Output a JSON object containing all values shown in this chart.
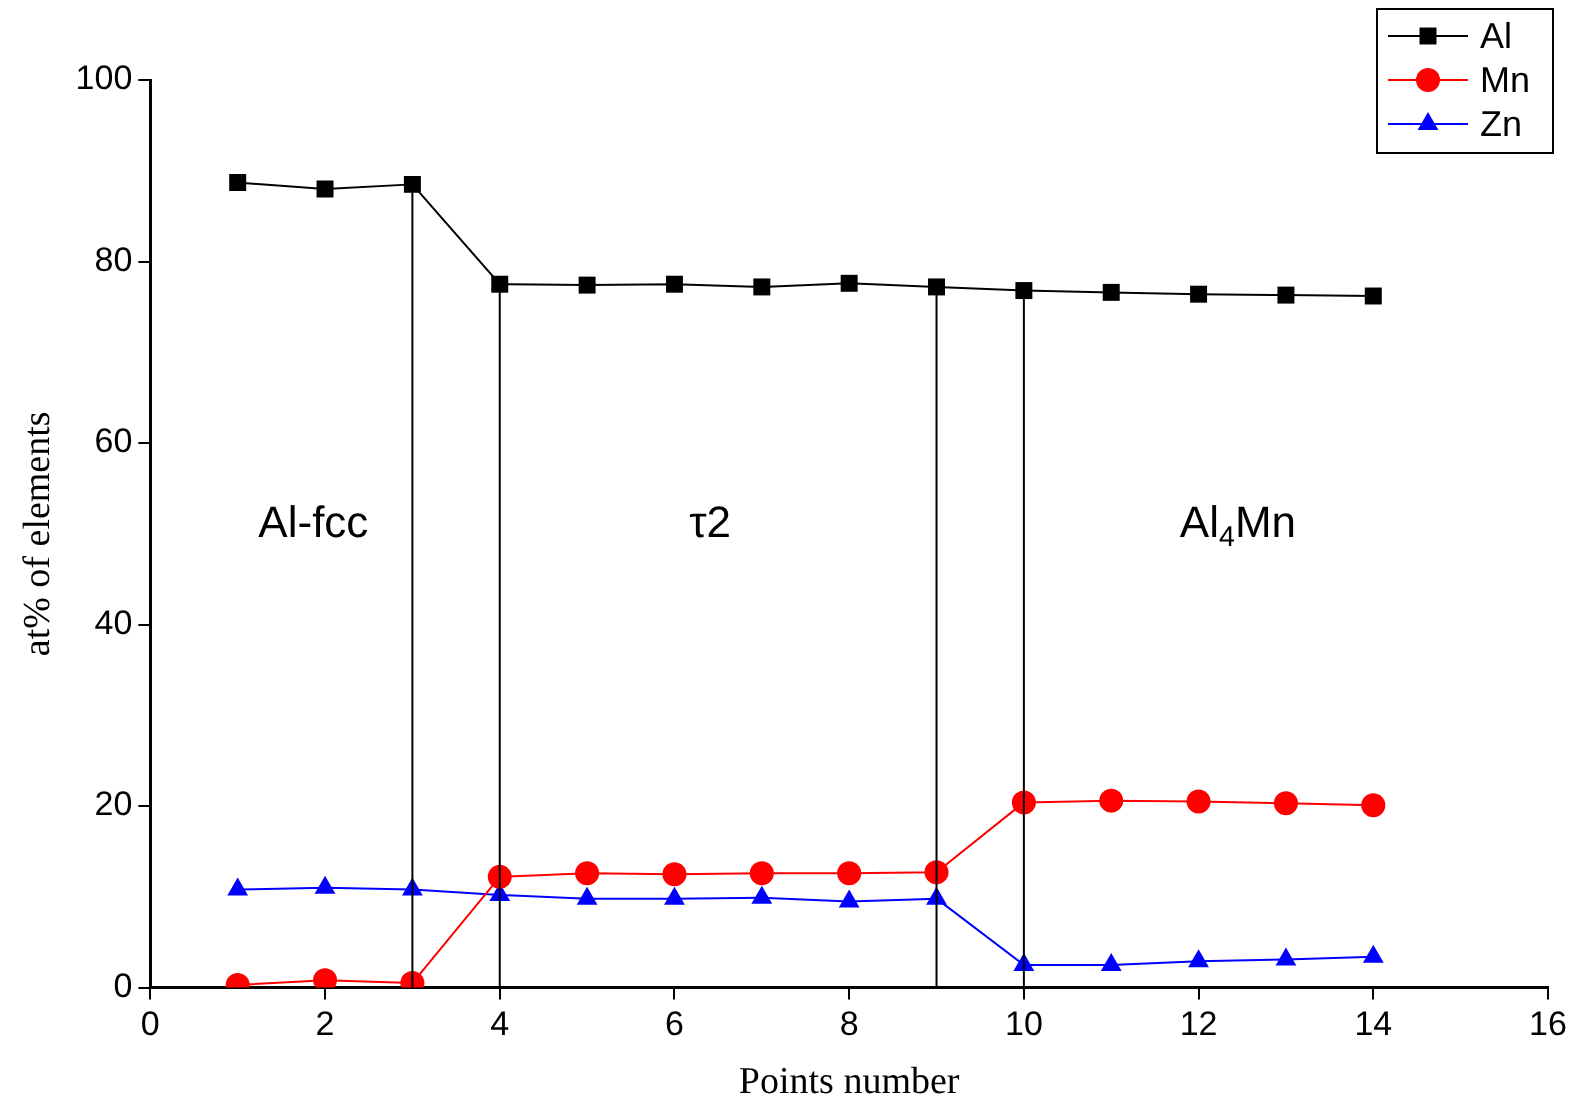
{
  "chart_data": {
    "type": "line",
    "xlabel": "Points number",
    "ylabel": "at% of elements",
    "xlim": [
      0,
      16
    ],
    "xticks": [
      0,
      2,
      4,
      6,
      8,
      10,
      12,
      14,
      16
    ],
    "ylim": [
      0,
      100
    ],
    "yticks": [
      0,
      20,
      40,
      60,
      80,
      100
    ],
    "grid": false,
    "legend": "top right",
    "line_style": "solid",
    "x": [
      1,
      2,
      3,
      4,
      5,
      6,
      7,
      8,
      9,
      10,
      11,
      12,
      13,
      14
    ],
    "series": [
      {
        "name": "Al",
        "color": "#000000",
        "marker": "square",
        "values": [
          88.7,
          88.0,
          88.5,
          77.5,
          77.4,
          77.5,
          77.2,
          77.6,
          77.2,
          76.8,
          76.6,
          76.4,
          76.3,
          76.2
        ]
      },
      {
        "name": "Mn",
        "color": "#ff0000",
        "marker": "circle",
        "values": [
          0.3,
          0.8,
          0.5,
          12.2,
          12.6,
          12.5,
          12.6,
          12.6,
          12.7,
          20.4,
          20.6,
          20.5,
          20.3,
          20.1
        ]
      },
      {
        "name": "Zn",
        "color": "#0000ff",
        "marker": "triangle",
        "values": [
          10.8,
          11.0,
          10.8,
          10.2,
          9.8,
          9.8,
          9.9,
          9.5,
          9.8,
          2.5,
          2.5,
          2.9,
          3.1,
          3.4
        ]
      }
    ],
    "ref_lines": [
      {
        "axis": "x",
        "value": 3,
        "color": "#000000"
      },
      {
        "axis": "x",
        "value": 4,
        "color": "#000000"
      },
      {
        "axis": "x",
        "value": 9,
        "color": "#000000"
      },
      {
        "axis": "x",
        "value": 10,
        "color": "#000000"
      }
    ],
    "annotations": [
      "Al-fcc",
      "τ2",
      "Al$_{4}$Mn"
    ]
  }
}
